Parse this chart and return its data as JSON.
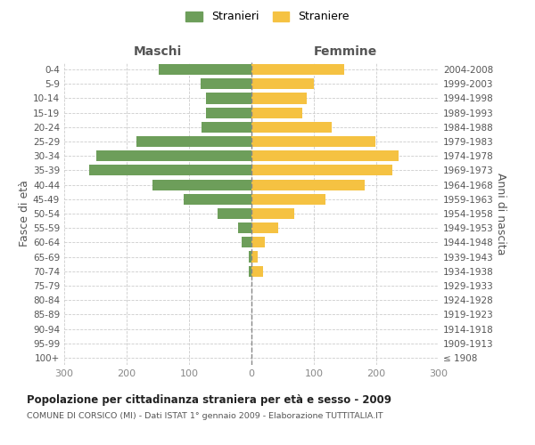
{
  "age_groups": [
    "100+",
    "95-99",
    "90-94",
    "85-89",
    "80-84",
    "75-79",
    "70-74",
    "65-69",
    "60-64",
    "55-59",
    "50-54",
    "45-49",
    "40-44",
    "35-39",
    "30-34",
    "25-29",
    "20-24",
    "15-19",
    "10-14",
    "5-9",
    "0-4"
  ],
  "birth_years": [
    "≤ 1908",
    "1909-1913",
    "1914-1918",
    "1919-1923",
    "1924-1928",
    "1929-1933",
    "1934-1938",
    "1939-1943",
    "1944-1948",
    "1949-1953",
    "1954-1958",
    "1959-1963",
    "1964-1968",
    "1969-1973",
    "1974-1978",
    "1979-1983",
    "1984-1988",
    "1989-1993",
    "1994-1998",
    "1999-2003",
    "2004-2008"
  ],
  "maschi": [
    0,
    0,
    0,
    0,
    0,
    0,
    5,
    4,
    16,
    22,
    55,
    108,
    158,
    260,
    248,
    185,
    80,
    73,
    73,
    82,
    148
  ],
  "femmine": [
    0,
    0,
    0,
    0,
    0,
    0,
    18,
    10,
    22,
    43,
    68,
    118,
    182,
    225,
    235,
    198,
    128,
    82,
    88,
    100,
    148
  ],
  "color_maschi": "#6d9e5a",
  "color_femmine": "#f5c242",
  "title": "Popolazione per cittadinanza straniera per età e sesso - 2009",
  "subtitle": "COMUNE DI CORSICO (MI) - Dati ISTAT 1° gennaio 2009 - Elaborazione TUTTITALIA.IT",
  "xlabel_maschi": "Maschi",
  "xlabel_femmine": "Femmine",
  "ylabel_left": "Fasce di età",
  "ylabel_right": "Anni di nascita",
  "legend_maschi": "Stranieri",
  "legend_femmine": "Straniere",
  "xlim": 300,
  "background_color": "#ffffff",
  "grid_color": "#cccccc",
  "axis_label_color": "#555555",
  "tick_color": "#888888",
  "dashed_line_color": "#888888"
}
